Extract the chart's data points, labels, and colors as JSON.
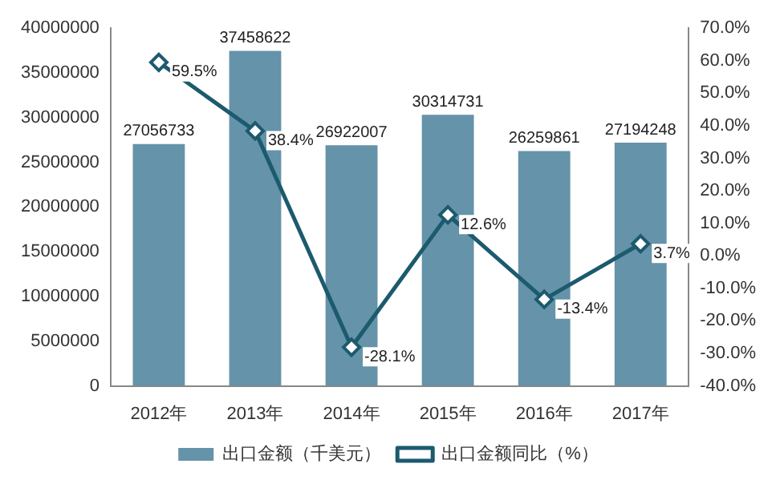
{
  "chart_data": {
    "type": "bar",
    "categories": [
      "2012年",
      "2013年",
      "2014年",
      "2015年",
      "2016年",
      "2017年"
    ],
    "series": [
      {
        "name": "出口金额（千美元）",
        "color": "#6593a9",
        "values": [
          27056733,
          37458622,
          26922007,
          30314731,
          26259861,
          27194248
        ],
        "value_labels": [
          "27056733",
          "37458622",
          "26922007",
          "30314731",
          "26259861",
          "27194248"
        ]
      },
      {
        "name": "出口金额同比（%）",
        "type": "line",
        "axis": "y2",
        "color": "#1c5a6e",
        "marker": "diamond",
        "values": [
          59.5,
          38.4,
          -28.1,
          12.6,
          -13.4,
          3.7
        ],
        "value_labels": [
          "59.5%",
          "38.4%",
          "-28.1%",
          "12.6%",
          "-13.4%",
          "3.7%"
        ]
      }
    ],
    "ylim": [
      0,
      40000000
    ],
    "yticks": [
      0,
      5000000,
      10000000,
      15000000,
      20000000,
      25000000,
      30000000,
      35000000,
      40000000
    ],
    "y2lim": [
      -40,
      70
    ],
    "y2ticks": [
      {
        "value": -40,
        "label": "-40.0%"
      },
      {
        "value": -30,
        "label": "-30.0%"
      },
      {
        "value": -20,
        "label": "-20.0%"
      },
      {
        "value": -10,
        "label": "-10.0%"
      },
      {
        "value": 0,
        "label": "0.0%"
      },
      {
        "value": 10,
        "label": "10.0%"
      },
      {
        "value": 20,
        "label": "20.0%"
      },
      {
        "value": 30,
        "label": "30.0%"
      },
      {
        "value": 40,
        "label": "40.0%"
      },
      {
        "value": 50,
        "label": "50.0%"
      },
      {
        "value": 60,
        "label": "60.0%"
      },
      {
        "value": 70,
        "label": "70.0%"
      }
    ],
    "grid": false,
    "legend": "bottom"
  }
}
